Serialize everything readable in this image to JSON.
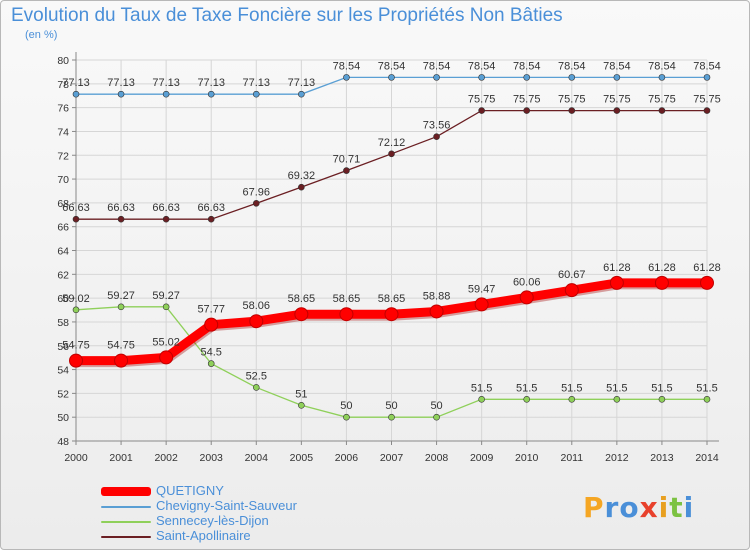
{
  "title": "Evolution du Taux de Taxe Foncière sur les Propriétés Non Bâties",
  "subtitle": "(en %)",
  "logo": {
    "text": "Proxiti",
    "letters": [
      {
        "ch": "P",
        "color": "#f5a623"
      },
      {
        "ch": "r",
        "color": "#4a8fd8"
      },
      {
        "ch": "o",
        "color": "#4a8fd8"
      },
      {
        "ch": "x",
        "color": "#e8412c"
      },
      {
        "ch": "i",
        "color": "#e8a020"
      },
      {
        "ch": "t",
        "color": "#7cc242"
      },
      {
        "ch": "i",
        "color": "#4a8fd8"
      }
    ]
  },
  "chart_data": {
    "type": "line",
    "x": [
      "2000",
      "2001",
      "2002",
      "2003",
      "2004",
      "2005",
      "2006",
      "2007",
      "2008",
      "2009",
      "2010",
      "2011",
      "2012",
      "2013",
      "2014"
    ],
    "ylim": [
      48,
      80
    ],
    "yticks": [
      48,
      50,
      52,
      54,
      56,
      58,
      60,
      62,
      64,
      66,
      68,
      70,
      72,
      74,
      76,
      78,
      80
    ],
    "grid": true,
    "legend_position": "bottom-left",
    "series": [
      {
        "name": "Saint-Apollinaire",
        "color": "#6b1f23",
        "emphasis": false,
        "values": [
          66.63,
          66.63,
          66.63,
          66.63,
          67.96,
          69.32,
          70.71,
          72.12,
          73.56,
          75.75,
          75.75,
          75.75,
          75.75,
          75.75,
          75.75
        ],
        "labels": [
          "66.63",
          "66.63",
          "66.63",
          "66.63",
          "67.96",
          "69.32",
          "70.71",
          "72.12",
          "73.56",
          "75.75",
          "75.75",
          "75.75",
          "75.75",
          "75.75",
          "75.75"
        ]
      },
      {
        "name": "Sennecey-lès-Dijon",
        "color": "#8fd05a",
        "emphasis": false,
        "values": [
          59.02,
          59.27,
          59.27,
          54.5,
          52.5,
          51,
          50,
          50,
          50,
          51.5,
          51.5,
          51.5,
          51.5,
          51.5,
          51.5
        ],
        "labels": [
          "59.02",
          "59.27",
          "59.27",
          "54.5",
          "52.5",
          "51",
          "50",
          "50",
          "50",
          "51.5",
          "51.5",
          "51.5",
          "51.5",
          "51.5",
          "51.5"
        ]
      },
      {
        "name": "Chevigny-Saint-Sauveur",
        "color": "#5a9fd4",
        "emphasis": false,
        "values": [
          77.13,
          77.13,
          77.13,
          77.13,
          77.13,
          77.13,
          78.54,
          78.54,
          78.54,
          78.54,
          78.54,
          78.54,
          78.54,
          78.54,
          78.54
        ],
        "labels": [
          "77.13",
          "77.13",
          "77.13",
          "77.13",
          "77.13",
          "77.13",
          "78.54",
          "78.54",
          "78.54",
          "78.54",
          "78.54",
          "78.54",
          "78.54",
          "78.54",
          "78.54"
        ]
      },
      {
        "name": "QUETIGNY",
        "color": "#ff0000",
        "emphasis": true,
        "values": [
          54.75,
          54.75,
          55.02,
          57.77,
          58.06,
          58.65,
          58.65,
          58.65,
          58.88,
          59.47,
          60.06,
          60.67,
          61.28,
          61.28,
          61.28
        ],
        "labels": [
          "54.75",
          "54.75",
          "55.02",
          "57.77",
          "58.06",
          "58.65",
          "58.65",
          "58.65",
          "58.88",
          "59.47",
          "60.06",
          "60.67",
          "61.28",
          "61.28",
          "61.28"
        ]
      }
    ],
    "legend_order": [
      "QUETIGNY",
      "Chevigny-Saint-Sauveur",
      "Sennecey-lès-Dijon",
      "Saint-Apollinaire"
    ]
  }
}
